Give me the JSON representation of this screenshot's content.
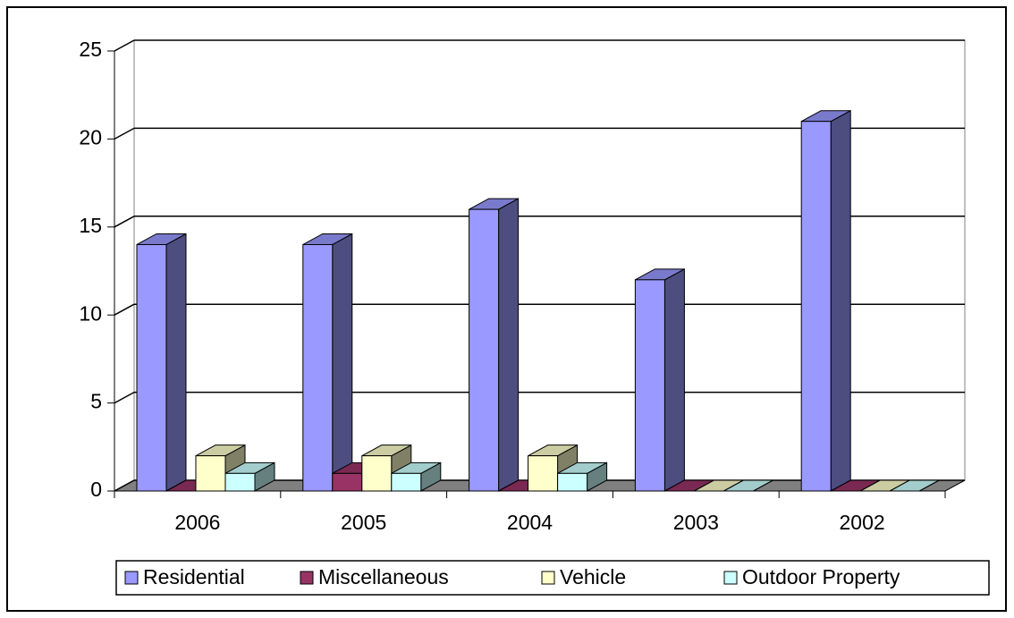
{
  "chart_data": {
    "type": "bar3d",
    "categories": [
      "2006",
      "2005",
      "2004",
      "2003",
      "2002"
    ],
    "series": [
      {
        "name": "Residential",
        "color": "#9999ff",
        "values": [
          14,
          14,
          16,
          12,
          21
        ]
      },
      {
        "name": "Miscellaneous",
        "color": "#993366",
        "values": [
          0,
          1,
          0,
          0,
          0
        ]
      },
      {
        "name": "Vehicle",
        "color": "#ffffcc",
        "values": [
          2,
          2,
          2,
          0,
          0
        ]
      },
      {
        "name": "Outdoor Property",
        "color": "#ccffff",
        "values": [
          1,
          1,
          1,
          0,
          0
        ]
      }
    ],
    "ylim": [
      0,
      25
    ],
    "yticks": [
      0,
      5,
      10,
      15,
      20,
      25
    ],
    "grid": true,
    "legend": "bottom"
  }
}
